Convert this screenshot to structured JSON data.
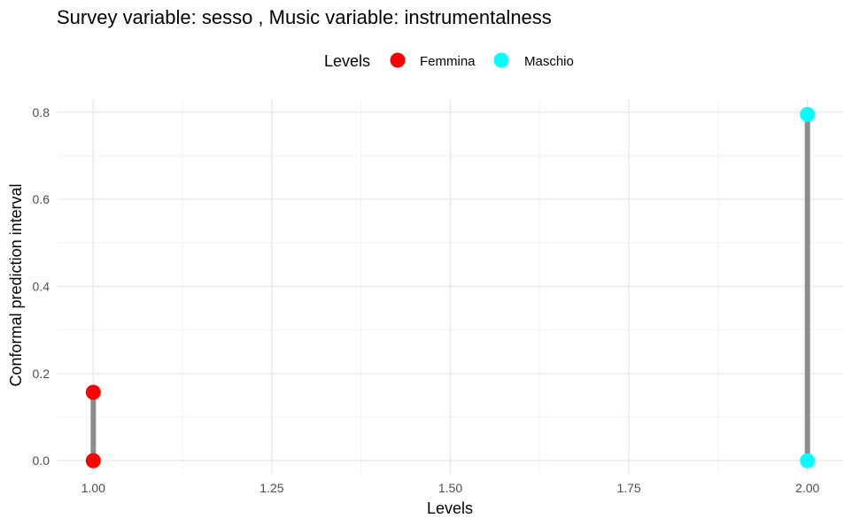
{
  "chart_data": {
    "type": "scatter",
    "title": "Survey variable: sesso , Music variable: instrumentalness",
    "xlabel": "Levels",
    "ylabel": "Conformal prediction interval",
    "xlim": [
      0.95,
      2.05
    ],
    "ylim": [
      -0.03,
      0.83
    ],
    "x_ticks": [
      1.0,
      1.25,
      1.5,
      1.75,
      2.0
    ],
    "x_tick_labels": [
      "1.00",
      "1.25",
      "1.50",
      "1.75",
      "2.00"
    ],
    "y_ticks": [
      0.0,
      0.2,
      0.4,
      0.6,
      0.8
    ],
    "y_tick_labels": [
      "0.0",
      "0.2",
      "0.4",
      "0.6",
      "0.8"
    ],
    "grid": true,
    "legend": {
      "title": "Levels",
      "position": "top-center",
      "entries": [
        {
          "label": "Femmina",
          "color": "#ff0000"
        },
        {
          "label": "Maschio",
          "color": "#00ffff"
        }
      ]
    },
    "segment_color": "#8c8c8c",
    "series": [
      {
        "name": "Femmina",
        "color": "#ff0000",
        "x": 1.0,
        "lower": 0.0,
        "upper": 0.157
      },
      {
        "name": "Maschio",
        "color": "#00ffff",
        "x": 2.0,
        "lower": 0.0,
        "upper": 0.795
      }
    ]
  }
}
